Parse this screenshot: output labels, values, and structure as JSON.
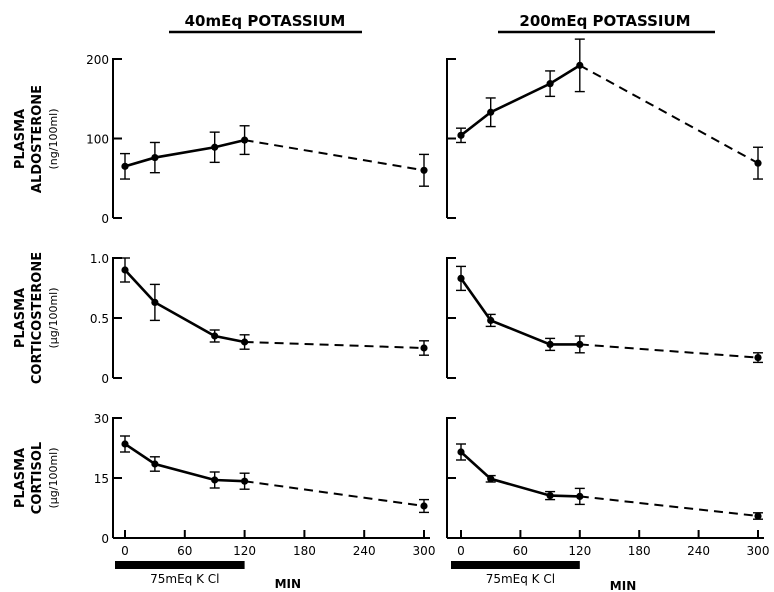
{
  "headers": {
    "left": "40mEq POTASSIUM",
    "right": "200mEq POTASSIUM"
  },
  "row_labels": [
    {
      "line1": "PLASMA",
      "line2": "ALDOSTERONE",
      "unit": "(ng/100ml)"
    },
    {
      "line1": "PLASMA",
      "line2": "CORTICOSTERONE",
      "unit": "(μg/100ml)"
    },
    {
      "line1": "PLASMA",
      "line2": "CORTISOL",
      "unit": "(μg/100ml)"
    }
  ],
  "x_axis": {
    "ticks": [
      0,
      60,
      120,
      180,
      240,
      300
    ],
    "unit_label": "MIN",
    "infusion_label": "75mEq K Cl",
    "infusion_range": [
      0,
      120
    ]
  },
  "chart_data": [
    {
      "type": "line",
      "panel": "40mEq POTASSIUM",
      "ylabel": "PLASMA ALDOSTERONE (ng/100ml)",
      "ylim": [
        0,
        200
      ],
      "yticks": [
        0,
        100,
        200
      ],
      "ytick_labels": [
        "0",
        "100",
        "200"
      ],
      "x": [
        0,
        30,
        90,
        120,
        300
      ],
      "y": [
        65,
        76,
        89,
        98,
        60
      ],
      "err": [
        16,
        19,
        19,
        18,
        20
      ],
      "solid_until": 120
    },
    {
      "type": "line",
      "panel": "200mEq POTASSIUM",
      "ylabel": "PLASMA ALDOSTERONE (ng/100ml)",
      "ylim": [
        0,
        200
      ],
      "yticks": [
        0,
        100,
        200
      ],
      "ytick_labels": [
        "",
        "",
        ""
      ],
      "x": [
        0,
        30,
        90,
        120,
        300
      ],
      "y": [
        104,
        133,
        169,
        192,
        69
      ],
      "err": [
        9,
        18,
        16,
        33,
        20
      ],
      "solid_until": 120
    },
    {
      "type": "line",
      "panel": "40mEq POTASSIUM",
      "ylabel": "PLASMA CORTICOSTERONE (μg/100ml)",
      "ylim": [
        0,
        1.0
      ],
      "yticks": [
        0,
        0.5,
        1.0
      ],
      "ytick_labels": [
        "0",
        "0.5",
        "1.0"
      ],
      "x": [
        0,
        30,
        90,
        120,
        300
      ],
      "y": [
        0.9,
        0.63,
        0.35,
        0.3,
        0.25
      ],
      "err": [
        0.1,
        0.15,
        0.05,
        0.06,
        0.06
      ],
      "solid_until": 120
    },
    {
      "type": "line",
      "panel": "200mEq POTASSIUM",
      "ylabel": "PLASMA CORTICOSTERONE (μg/100ml)",
      "ylim": [
        0,
        1.0
      ],
      "yticks": [
        0,
        0.5,
        1.0
      ],
      "ytick_labels": [
        "",
        "",
        ""
      ],
      "x": [
        0,
        30,
        90,
        120,
        300
      ],
      "y": [
        0.83,
        0.48,
        0.28,
        0.28,
        0.17
      ],
      "err": [
        0.1,
        0.05,
        0.05,
        0.07,
        0.04
      ],
      "solid_until": 120
    },
    {
      "type": "line",
      "panel": "40mEq POTASSIUM",
      "ylabel": "PLASMA CORTISOL (μg/100ml)",
      "ylim": [
        0,
        30
      ],
      "yticks": [
        0,
        15,
        30
      ],
      "ytick_labels": [
        "0",
        "15",
        "30"
      ],
      "x": [
        0,
        30,
        90,
        120,
        300
      ],
      "y": [
        23.5,
        18.5,
        14.5,
        14.2,
        8
      ],
      "err": [
        2,
        1.8,
        2,
        2,
        1.6
      ],
      "solid_until": 120
    },
    {
      "type": "line",
      "panel": "200mEq POTASSIUM",
      "ylabel": "PLASMA CORTISOL (μg/100ml)",
      "ylim": [
        0,
        30
      ],
      "yticks": [
        0,
        15,
        30
      ],
      "ytick_labels": [
        "",
        "",
        ""
      ],
      "x": [
        0,
        30,
        90,
        120,
        300
      ],
      "y": [
        21.5,
        14.8,
        10.6,
        10.4,
        5.5
      ],
      "err": [
        2,
        0.8,
        1,
        2,
        0.8
      ],
      "solid_until": 120
    }
  ]
}
